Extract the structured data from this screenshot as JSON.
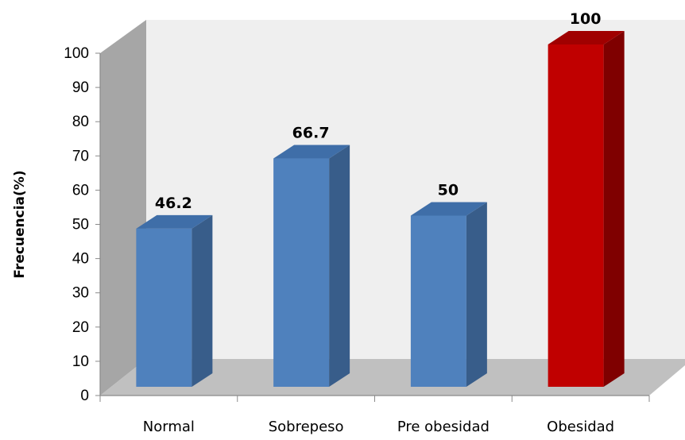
{
  "chart_data": {
    "type": "bar",
    "title": "",
    "xlabel": "",
    "ylabel": "Frecuencia(%)",
    "ylim": [
      0,
      100
    ],
    "yticks": [
      0,
      10,
      20,
      30,
      40,
      50,
      60,
      70,
      80,
      90,
      100
    ],
    "categories": [
      "Normal",
      "Sobrepeso",
      "Pre obesidad",
      "Obesidad"
    ],
    "values": [
      46.2,
      66.7,
      50,
      100
    ],
    "data_labels": [
      "46.2",
      "66.7",
      "50",
      "100"
    ],
    "bar_colors": [
      "#4f81bd",
      "#4f81bd",
      "#4f81bd",
      "#c00000"
    ],
    "bar_side_colors": [
      "#385d8a",
      "#385d8a",
      "#385d8a",
      "#7f0000"
    ],
    "bar_top_colors": [
      "#3f6ea8",
      "#3f6ea8",
      "#3f6ea8",
      "#a00000"
    ],
    "back_wall_color": "#efefef",
    "side_wall_color": "#a6a6a6",
    "floor_color": "#c0c0c0",
    "grid": false,
    "legend": "none",
    "style": "3d-column"
  }
}
